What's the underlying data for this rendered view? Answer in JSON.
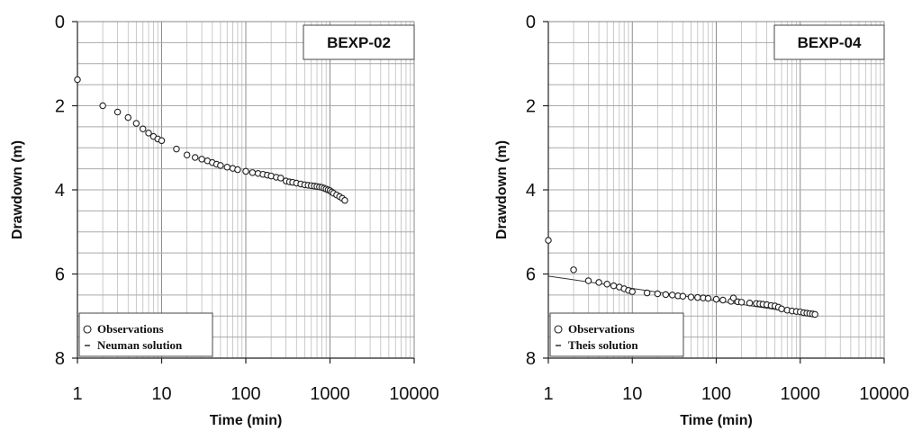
{
  "chart_data": [
    {
      "type": "scatter",
      "title": "BEXP-02",
      "xlabel": "Time (min)",
      "ylabel": "Drawdown (m)",
      "xscale": "log",
      "xlim": [
        1,
        10000
      ],
      "ylim": [
        8,
        0
      ],
      "yinverted": true,
      "grid": true,
      "xticks": [
        1,
        10,
        100,
        1000,
        10000
      ],
      "xtick_labels": [
        "1",
        "10",
        "100",
        "1000",
        "10000"
      ],
      "yticks": [
        0,
        2,
        4,
        6,
        8
      ],
      "ytick_labels": [
        "0",
        "2",
        "4",
        "6",
        "8"
      ],
      "legend": {
        "position": "bottom-left",
        "entries": [
          {
            "label": "Observations",
            "symbol": "circle"
          },
          {
            "label": "Neuman solution",
            "symbol": "line"
          }
        ]
      },
      "series": [
        {
          "name": "Observations",
          "x": [
            1,
            2,
            3,
            4,
            5,
            6,
            7,
            8,
            9,
            10,
            15,
            20,
            25,
            30,
            35,
            40,
            45,
            50,
            60,
            70,
            80,
            100,
            120,
            140,
            160,
            180,
            200,
            230,
            260,
            300,
            330,
            360,
            400,
            450,
            500,
            550,
            600,
            650,
            700,
            750,
            800,
            850,
            900,
            950,
            1000,
            1050,
            1100,
            1200,
            1300,
            1400,
            1500
          ],
          "y": [
            1.38,
            2.0,
            2.15,
            2.28,
            2.42,
            2.55,
            2.65,
            2.73,
            2.79,
            2.83,
            3.03,
            3.17,
            3.23,
            3.27,
            3.31,
            3.35,
            3.39,
            3.42,
            3.46,
            3.49,
            3.52,
            3.56,
            3.59,
            3.61,
            3.63,
            3.65,
            3.67,
            3.7,
            3.72,
            3.79,
            3.81,
            3.82,
            3.84,
            3.86,
            3.88,
            3.89,
            3.9,
            3.91,
            3.92,
            3.93,
            3.94,
            3.96,
            3.98,
            4.0,
            4.02,
            4.05,
            4.08,
            4.12,
            4.16,
            4.2,
            4.25
          ]
        },
        {
          "name": "Neuman solution",
          "x": [],
          "y": []
        }
      ]
    },
    {
      "type": "scatter",
      "title": "BEXP-04",
      "xlabel": "Time (min)",
      "ylabel": "Drawdown (m)",
      "xscale": "log",
      "xlim": [
        1,
        10000
      ],
      "ylim": [
        8,
        0
      ],
      "yinverted": true,
      "grid": true,
      "xticks": [
        1,
        10,
        100,
        1000,
        10000
      ],
      "xtick_labels": [
        "1",
        "10",
        "100",
        "1000",
        "10000"
      ],
      "yticks": [
        0,
        2,
        4,
        6,
        8
      ],
      "ytick_labels": [
        "0",
        "2",
        "4",
        "6",
        "8"
      ],
      "legend": {
        "position": "bottom-left",
        "entries": [
          {
            "label": "Observations",
            "symbol": "circle"
          },
          {
            "label": "Theis solution",
            "symbol": "line"
          }
        ]
      },
      "series": [
        {
          "name": "Observations",
          "x": [
            1,
            2,
            3,
            4,
            5,
            6,
            7,
            8,
            9,
            10,
            15,
            20,
            25,
            30,
            35,
            40,
            50,
            60,
            70,
            80,
            100,
            120,
            150,
            160,
            180,
            200,
            250,
            300,
            330,
            360,
            400,
            450,
            500,
            550,
            600,
            700,
            800,
            900,
            1000,
            1100,
            1200,
            1300,
            1400,
            1500
          ],
          "y": [
            5.2,
            5.9,
            6.16,
            6.2,
            6.24,
            6.28,
            6.31,
            6.35,
            6.39,
            6.42,
            6.45,
            6.47,
            6.49,
            6.5,
            6.52,
            6.53,
            6.55,
            6.56,
            6.57,
            6.58,
            6.6,
            6.62,
            6.65,
            6.57,
            6.66,
            6.67,
            6.69,
            6.7,
            6.71,
            6.72,
            6.73,
            6.75,
            6.76,
            6.79,
            6.83,
            6.86,
            6.88,
            6.89,
            6.9,
            6.92,
            6.93,
            6.94,
            6.95,
            6.96
          ]
        },
        {
          "name": "Theis solution",
          "x": [
            1,
            1500
          ],
          "y": [
            6.05,
            6.98
          ]
        }
      ]
    }
  ]
}
